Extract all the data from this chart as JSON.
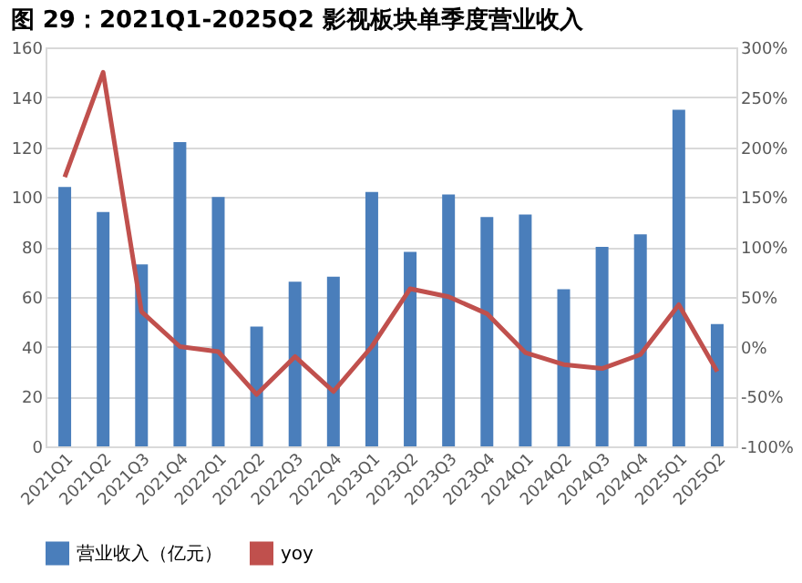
{
  "chart_data": {
    "type": "bar",
    "title": "图 29：2021Q1-2025Q2 影视板块单季度营业收入",
    "categories": [
      "2021Q1",
      "2021Q2",
      "2021Q3",
      "2021Q4",
      "2022Q1",
      "2022Q2",
      "2022Q3",
      "2022Q4",
      "2023Q1",
      "2023Q2",
      "2023Q3",
      "2023Q4",
      "2024Q1",
      "2024Q2",
      "2024Q3",
      "2024Q4",
      "2025Q1",
      "2025Q2"
    ],
    "series": [
      {
        "name": "营业收入（亿元）",
        "color": "#4a7ebb",
        "values": [
          104,
          94,
          73,
          122,
          100,
          48,
          66,
          68,
          102,
          78,
          101,
          92,
          93,
          63,
          80,
          85,
          135,
          49
        ]
      },
      {
        "name": "yoy",
        "type": "line",
        "axis": "y2",
        "color": "#c0504d",
        "values": [
          170,
          275,
          35,
          0,
          -5,
          -48,
          -10,
          -45,
          0,
          58,
          50,
          33,
          -6,
          -18,
          -22,
          -8,
          42,
          -25
        ]
      }
    ],
    "ylim": [
      0,
      160
    ],
    "yticks": [
      0,
      20,
      40,
      60,
      80,
      100,
      120,
      140,
      160
    ],
    "y2lim": [
      -100,
      300
    ],
    "y2ticks": [
      {
        "value": -100,
        "label": "-100%"
      },
      {
        "value": -50,
        "label": "-50%"
      },
      {
        "value": 0,
        "label": "0%"
      },
      {
        "value": 50,
        "label": "50%"
      },
      {
        "value": 100,
        "label": "100%"
      },
      {
        "value": 150,
        "label": "150%"
      },
      {
        "value": 200,
        "label": "200%"
      },
      {
        "value": 250,
        "label": "250%"
      },
      {
        "value": 300,
        "label": "300%"
      }
    ],
    "grid": "y",
    "legend": "bottom",
    "marker": "none",
    "line_style": "solid"
  }
}
